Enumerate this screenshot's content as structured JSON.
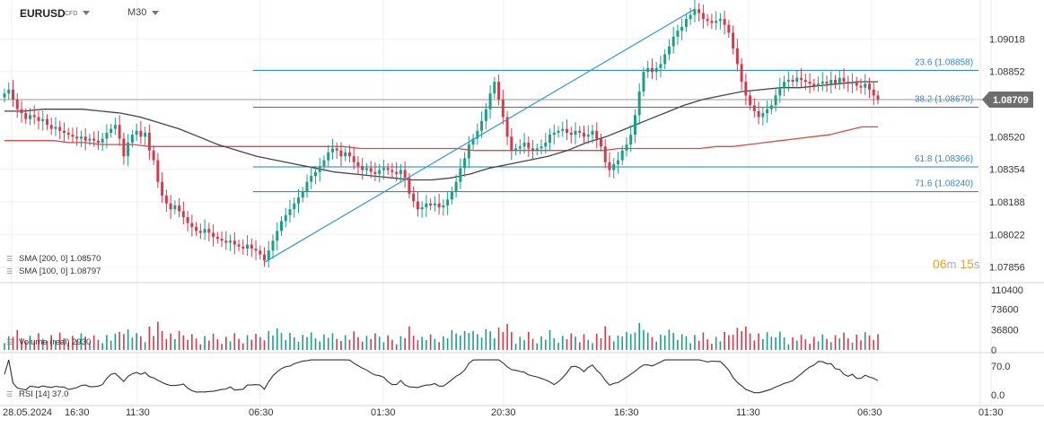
{
  "header": {
    "symbol": "EURUSD",
    "instrument_type": "CFD",
    "timeframe": "M30"
  },
  "countdown": {
    "minutes": "06",
    "minutes_unit": "m",
    "seconds": "15",
    "seconds_unit": "s"
  },
  "indicators": {
    "sma200": {
      "label": "SMA [200, 0]",
      "value": "1.08570",
      "color": "#e04848"
    },
    "sma100": {
      "label": "SMA [100, 0]",
      "value": "1.08797",
      "color": "#444444"
    },
    "volume": {
      "label": "Volume  (real)",
      "value": "2930"
    },
    "rsi": {
      "label": "RSI [14]",
      "value": "37.0"
    }
  },
  "colors": {
    "up": "#1aa08a",
    "down": "#d43a4c",
    "fib_line": "#1e7cc0",
    "fib_text": "#2a8ad4",
    "trend_line": "#2a98e0",
    "price_tag": "#6d6d6d"
  },
  "chart_data": [
    {
      "type": "candlestick",
      "title": "EURUSD",
      "y_ticks": [
        "1.09018",
        "1.08852",
        "1.08520",
        "1.08354",
        "1.08188",
        "1.08022",
        "1.07856"
      ],
      "ylim": [
        1.0779,
        1.0918
      ],
      "current_price": "1.08709",
      "x_tick_labels": [
        "28.05.2024",
        "16:30",
        "11:30",
        "06:30",
        "01:30",
        "20:30",
        "16:30",
        "11:30",
        "06:30",
        "01:30"
      ],
      "grid": true,
      "fibonacci": [
        {
          "label": "23.6 (1.08858)",
          "level": 1.08858
        },
        {
          "label": "38.2 (1.08670)",
          "level": 1.0867
        },
        {
          "label": "61.8 (1.08366)",
          "level": 1.08366
        },
        {
          "label": "71.6 (1.08240)",
          "level": 1.0824
        }
      ],
      "trendline": {
        "from_index": 0,
        "from_price": 1.0788,
        "to_index": 1,
        "to_price": 1.0917
      },
      "candles_close": [
        1.0874,
        1.0876,
        1.0871,
        1.0866,
        1.0864,
        1.0861,
        1.0863,
        1.0862,
        1.086,
        1.0861,
        1.0858,
        1.0856,
        1.0857,
        1.0855,
        1.0854,
        1.0853,
        1.0852,
        1.0851,
        1.0852,
        1.085,
        1.0851,
        1.085,
        1.0849,
        1.0851,
        1.0854,
        1.0856,
        1.0858,
        1.0851,
        1.0842,
        1.0849,
        1.0853,
        1.0855,
        1.0852,
        1.0854,
        1.0845,
        1.084,
        1.0829,
        1.0822,
        1.0818,
        1.0815,
        1.0817,
        1.0814,
        1.0811,
        1.0808,
        1.0806,
        1.0804,
        1.0803,
        1.0805,
        1.0803,
        1.0801,
        1.08,
        1.0799,
        1.0798,
        1.0799,
        1.0797,
        1.0796,
        1.0795,
        1.0797,
        1.0795,
        1.0794,
        1.0792,
        1.0789,
        1.0794,
        1.0799,
        1.0804,
        1.0809,
        1.0812,
        1.0815,
        1.0818,
        1.0821,
        1.0824,
        1.0829,
        1.0832,
        1.0834,
        1.0837,
        1.084,
        1.0844,
        1.0846,
        1.0845,
        1.0842,
        1.0844,
        1.0842,
        1.0839,
        1.0837,
        1.0835,
        1.0836,
        1.0834,
        1.0833,
        1.0835,
        1.0836,
        1.0835,
        1.0834,
        1.0833,
        1.0835,
        1.0831,
        1.0823,
        1.0819,
        1.0815,
        1.0816,
        1.0818,
        1.0817,
        1.0818,
        1.0816,
        1.0817,
        1.082,
        1.0824,
        1.0829,
        1.0836,
        1.0841,
        1.0848,
        1.0851,
        1.0855,
        1.086,
        1.0866,
        1.0874,
        1.088,
        1.0871,
        1.0862,
        1.0852,
        1.0845,
        1.0846,
        1.0847,
        1.0849,
        1.0846,
        1.0845,
        1.0846,
        1.0847,
        1.0849,
        1.0853,
        1.0854,
        1.0855,
        1.0856,
        1.0854,
        1.0853,
        1.0855,
        1.0854,
        1.0852,
        1.0853,
        1.0855,
        1.0851,
        1.0847,
        1.0839,
        1.0835,
        1.0838,
        1.084,
        1.0845,
        1.0848,
        1.0853,
        1.0863,
        1.0875,
        1.0885,
        1.0887,
        1.0885,
        1.0887,
        1.0889,
        1.0894,
        1.0898,
        1.0903,
        1.0906,
        1.0908,
        1.0912,
        1.0914,
        1.0917,
        1.0915,
        1.0912,
        1.0911,
        1.091,
        1.0911,
        1.0912,
        1.0909,
        1.0905,
        1.0897,
        1.0889,
        1.088,
        1.0873,
        1.0868,
        1.0865,
        1.0862,
        1.0864,
        1.0866,
        1.0868,
        1.0873,
        1.0877,
        1.088,
        1.0881,
        1.088,
        1.0882,
        1.0881,
        1.088,
        1.0879,
        1.0878,
        1.0879,
        1.088,
        1.0879,
        1.0881,
        1.0879,
        1.0882,
        1.088,
        1.0879,
        1.088,
        1.0878,
        1.0877,
        1.0879,
        1.0876,
        1.0873,
        1.0871
      ],
      "sma200": [
        1.085,
        1.085,
        1.085,
        1.085,
        1.0849,
        1.0849,
        1.0848,
        1.0848,
        1.0848,
        1.0847,
        1.0847,
        1.0847,
        1.0847,
        1.0847,
        1.0847,
        1.0847,
        1.0847,
        1.0847,
        1.0847,
        1.0847,
        1.0847,
        1.0847,
        1.0846,
        1.0846,
        1.0846,
        1.0846,
        1.0846,
        1.0846,
        1.0846,
        1.0845,
        1.0845,
        1.0845,
        1.0845,
        1.0845,
        1.0845,
        1.0845,
        1.0845,
        1.0845,
        1.0846,
        1.0846,
        1.0846,
        1.0846,
        1.0846,
        1.0846,
        1.0847,
        1.0847,
        1.0848,
        1.0849,
        1.085,
        1.0851,
        1.0852,
        1.0853,
        1.0855,
        1.0857,
        1.0857
      ],
      "sma100": [
        1.0865,
        1.0865,
        1.0866,
        1.0866,
        1.0866,
        1.0865,
        1.0864,
        1.0862,
        1.0859,
        1.0856,
        1.0852,
        1.0848,
        1.0845,
        1.0842,
        1.084,
        1.0838,
        1.0836,
        1.0834,
        1.0833,
        1.0832,
        1.0831,
        1.083,
        1.083,
        1.0831,
        1.0833,
        1.0836,
        1.0838,
        1.084,
        1.0842,
        1.0845,
        1.0849,
        1.0852,
        1.0856,
        1.086,
        1.0864,
        1.0868,
        1.0871,
        1.0873,
        1.0875,
        1.0876,
        1.0877,
        1.0877,
        1.0878,
        1.0879,
        1.088,
        1.088
      ]
    },
    {
      "type": "bar",
      "ylabel": "Volume",
      "y_ticks": [
        "110400",
        "73600",
        "36800",
        "0"
      ],
      "ylim": [
        0,
        110400
      ]
    },
    {
      "type": "line",
      "ylabel": "RSI",
      "y_ticks": [
        "70.0",
        "0.0"
      ],
      "ylim": [
        0,
        100
      ]
    }
  ]
}
